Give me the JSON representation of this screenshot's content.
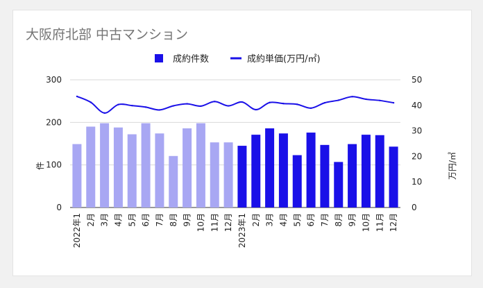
{
  "chart_data": {
    "type": "bar",
    "title": "大阪府北部 中古マンション",
    "categories": [
      "2022年1",
      "2月",
      "3月",
      "4月",
      "5月",
      "6月",
      "7月",
      "8月",
      "9月",
      "10月",
      "11月",
      "12月",
      "2023年1",
      "2月",
      "3月",
      "4月",
      "5月",
      "6月",
      "7月",
      "8月",
      "9月",
      "10月",
      "11月",
      "12月"
    ],
    "series": [
      {
        "name": "成約件数",
        "type": "bar",
        "axis": "left",
        "values": [
          149,
          190,
          198,
          188,
          172,
          198,
          174,
          121,
          186,
          198,
          153,
          153,
          145,
          171,
          186,
          174,
          123,
          176,
          147,
          107,
          149,
          171,
          170,
          143
        ],
        "colors": [
          "#a8a7f3",
          "#a8a7f3",
          "#a8a7f3",
          "#a8a7f3",
          "#a8a7f3",
          "#a8a7f3",
          "#a8a7f3",
          "#a8a7f3",
          "#a8a7f3",
          "#a8a7f3",
          "#a8a7f3",
          "#a8a7f3",
          "#1a10e8",
          "#1a10e8",
          "#1a10e8",
          "#1a10e8",
          "#1a10e8",
          "#1a10e8",
          "#1a10e8",
          "#1a10e8",
          "#1a10e8",
          "#1a10e8",
          "#1a10e8",
          "#1a10e8"
        ]
      },
      {
        "name": "成約単価(万円/㎡)",
        "type": "line",
        "axis": "right",
        "color": "#1a10e8",
        "values": [
          43.5,
          41.2,
          37.0,
          40.3,
          39.9,
          39.3,
          38.2,
          39.8,
          40.6,
          39.7,
          41.5,
          39.8,
          41.3,
          38.3,
          41.1,
          40.7,
          40.4,
          38.9,
          41.0,
          42.0,
          43.4,
          42.4,
          41.9,
          41.0
        ]
      }
    ],
    "ylabel": "件",
    "y2label": "万円/㎡",
    "ylim": [
      0,
      300
    ],
    "y2lim": [
      0,
      50
    ],
    "yticks": [
      "0",
      "100",
      "200",
      "300"
    ],
    "y2ticks": [
      "0",
      "10",
      "20",
      "30",
      "40",
      "50"
    ],
    "grid": true,
    "legend": "top-center",
    "legend_marker_color": "#1a10e8"
  }
}
